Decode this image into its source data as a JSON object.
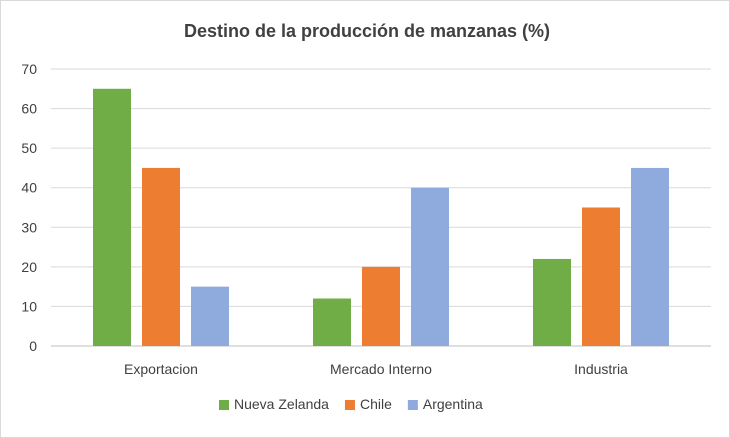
{
  "chart_data": {
    "type": "bar",
    "title": "Destino de la producción de manzanas (%)",
    "categories": [
      "Exportacion",
      "Mercado Interno",
      "Industria"
    ],
    "series": [
      {
        "name": "Nueva Zelanda",
        "color": "#70ad47",
        "values": [
          65,
          12,
          22
        ]
      },
      {
        "name": "Chile",
        "color": "#ed7d31",
        "values": [
          45,
          20,
          35
        ]
      },
      {
        "name": "Argentina",
        "color": "#8faadc",
        "values": [
          15,
          40,
          45
        ]
      }
    ],
    "ylim": [
      0,
      70
    ],
    "yticks": [
      0,
      10,
      20,
      30,
      40,
      50,
      60,
      70
    ],
    "grid": true,
    "legend_position": "bottom",
    "xlabel": "",
    "ylabel": ""
  }
}
